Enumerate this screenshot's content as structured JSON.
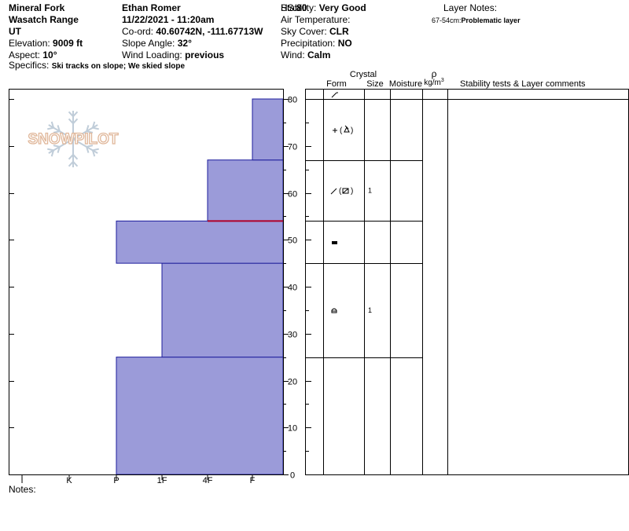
{
  "header": {
    "col1": [
      {
        "label": "",
        "value": "Mineral Fork"
      },
      {
        "label": "",
        "value": "Wasatch Range"
      },
      {
        "label": "",
        "value": "UT"
      },
      {
        "label": "Elevation: ",
        "value": "9009 ft"
      },
      {
        "label": "Aspect: ",
        "value": "10°"
      }
    ],
    "col2": [
      {
        "label": "",
        "value": "Ethan Romer"
      },
      {
        "label": "",
        "value": "11/22/2021 - 11:20am"
      },
      {
        "label": "Co-ord: ",
        "value": "40.60742N, -111.67713W"
      },
      {
        "label": "Slope Angle: ",
        "value": "32°"
      },
      {
        "label": "Wind Loading: ",
        "value": "previous"
      }
    ],
    "col3": [
      {
        "label": "Stability: ",
        "value": "Very Good"
      },
      {
        "label": "Air Temperature:",
        "value": ""
      },
      {
        "label": "Sky Cover: ",
        "value": "CLR"
      },
      {
        "label": "Precipitation: ",
        "value": "NO"
      },
      {
        "label": "Wind:  ",
        "value": "Calm"
      }
    ],
    "hs_label": "HS:",
    "hs_value": "80",
    "layer_notes_label": "Layer Notes:",
    "layer_note_range": "67-54cm:",
    "layer_note_text": "Problematic layer",
    "specifics_label": "Specifics: ",
    "specifics_value": "Ski tracks on slope; We skied slope",
    "notes_label": "Notes:"
  },
  "logo_text": "SNOWPILOT",
  "table": {
    "crystal_label": "Crystal",
    "columns": [
      "Form",
      "Size",
      "Moisture"
    ],
    "density_symbol": "ρ",
    "density_unit": "kg/m",
    "density_unit_sup": "3",
    "comments_label": "Stability tests & Layer comments",
    "size_values": [
      {
        "depth": 60.5,
        "value": "1"
      },
      {
        "depth": 35,
        "value": "1"
      }
    ]
  },
  "chart_data": {
    "type": "bar",
    "orientation": "horizontal",
    "title": "",
    "x_categories": [
      "I",
      "K",
      "P",
      "1F",
      "4F",
      "F"
    ],
    "y_ticks": [
      0,
      10,
      20,
      30,
      40,
      50,
      60,
      70,
      80
    ],
    "ylim": [
      0,
      80
    ],
    "layers": [
      {
        "bottom": 0,
        "top": 25,
        "hardness": "P",
        "hardness_value": 3
      },
      {
        "bottom": 25,
        "top": 45,
        "hardness": "1F",
        "hardness_value": 4
      },
      {
        "bottom": 45,
        "top": 54,
        "hardness": "P",
        "hardness_value": 3
      },
      {
        "bottom": 54,
        "top": 67,
        "hardness": "4F",
        "hardness_value": 5
      },
      {
        "bottom": 67,
        "top": 80,
        "hardness": "F",
        "hardness_value": 6
      }
    ],
    "problem_layer_depth": 54,
    "table_boundaries": [
      80,
      67,
      54,
      45,
      25,
      0
    ],
    "colors": {
      "bar_fill": "#9b9bd9",
      "bar_edge": "#1c1c9c",
      "problem_line": "#b0002a",
      "logo": "#e0b79a",
      "flake": "#c0cdd9"
    }
  }
}
